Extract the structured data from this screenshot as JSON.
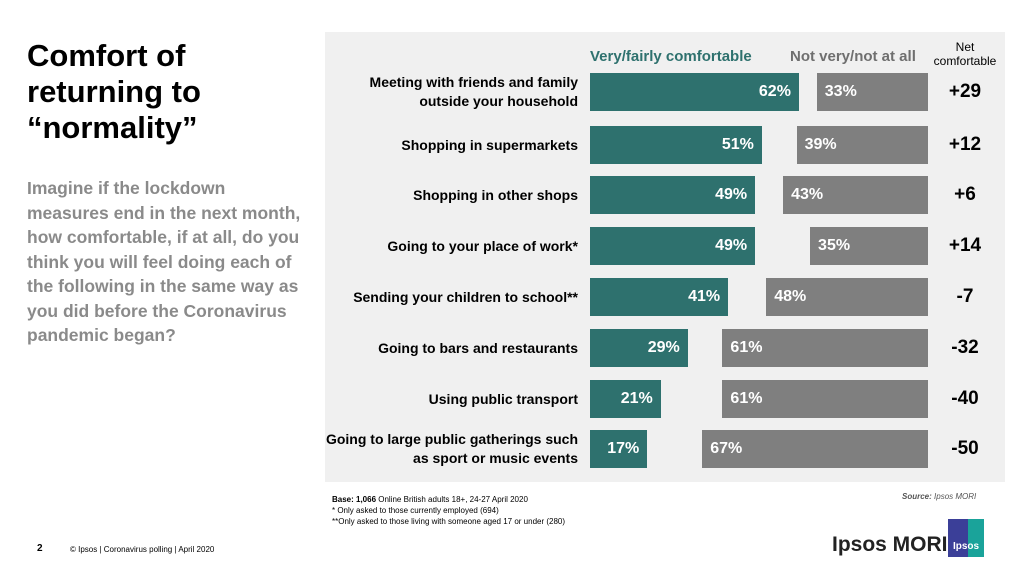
{
  "title": "Comfort of returning to “normality”",
  "question": "Imagine if the lockdown measures end in the next month, how comfortable, if at all, do you think you will feel doing each of the following in the same way as you did before the Coronavirus pandemic began?",
  "chart_data": {
    "type": "bar",
    "orientation": "horizontal",
    "categories": [
      "Meeting with friends and family outside your household",
      "Shopping in supermarkets",
      "Shopping in other shops",
      "Going to your place of work*",
      "Sending your children to school**",
      "Going to bars and restaurants",
      "Using public transport",
      "Going to large public gatherings such as sport or music events"
    ],
    "series": [
      {
        "name": "Very/fairly comfortable",
        "values": [
          62,
          51,
          49,
          49,
          41,
          29,
          21,
          17
        ],
        "color": "#2e716e"
      },
      {
        "name": "Not very/not at all",
        "values": [
          33,
          39,
          43,
          35,
          48,
          61,
          61,
          67
        ],
        "color": "#7f7f7f"
      }
    ],
    "net_label": "Net comfortable",
    "net": [
      "+29",
      "+12",
      "+6",
      "+14",
      "-7",
      "-32",
      "-40",
      "-50"
    ],
    "unit": "%"
  },
  "footer": {
    "base_bold": "Base: 1,066",
    "base": " Online British adults 18+, 24-27 April 2020",
    "note1": "* Only asked to those currently employed (694)",
    "note2": "**Only asked to those living with someone aged 17 or under (280)",
    "source_label": "Source:",
    "source": " Ipsos MORI",
    "page": "2",
    "copyright": "© Ipsos | Coronavirus polling | April 2020",
    "brand": "Ipsos MORI",
    "logo_text": "Ipsos"
  }
}
